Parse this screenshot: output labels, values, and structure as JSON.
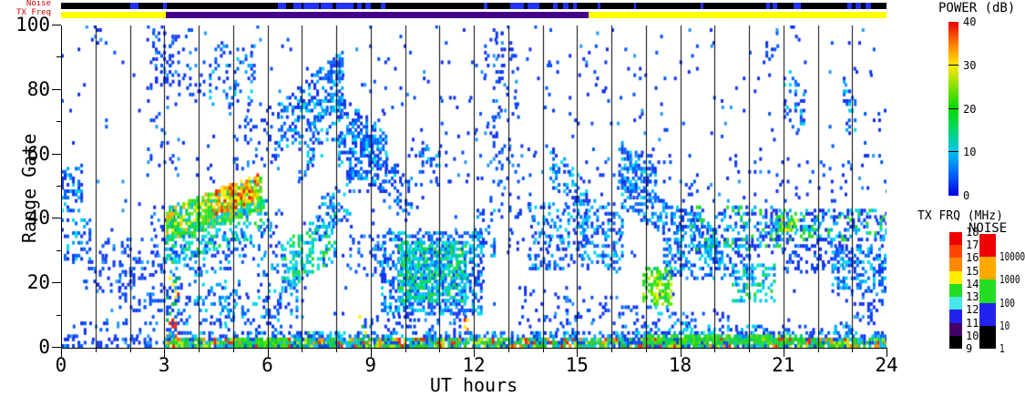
{
  "chart_data": {
    "type": "heatmap",
    "title": "",
    "xlabel": "UT hours",
    "ylabel": "Range Gate",
    "xlim": [
      0,
      24
    ],
    "ylim": [
      0,
      100
    ],
    "x_major_ticks": [
      0,
      3,
      6,
      9,
      12,
      15,
      18,
      21,
      24
    ],
    "x_minor_step": 1,
    "y_major_ticks": [
      0,
      20,
      40,
      60,
      80,
      100
    ],
    "y_minor_step": 10,
    "hour_gridlines": true,
    "seed": 7,
    "strips": {
      "noise": {
        "label": "Noise",
        "bar_color": "#000000",
        "mark_color": "#2233ff",
        "segments_hours": [
          [
            2.0,
            2.25
          ],
          [
            2.98,
            3.06
          ],
          [
            6.3,
            6.55
          ],
          [
            6.75,
            7.0
          ],
          [
            7.05,
            7.5
          ],
          [
            7.55,
            7.9
          ],
          [
            8.0,
            8.5
          ],
          [
            8.6,
            8.75
          ],
          [
            8.85,
            9.0
          ],
          [
            9.3,
            9.42
          ],
          [
            12.3,
            12.4
          ],
          [
            13.05,
            13.45
          ],
          [
            13.55,
            13.9
          ],
          [
            14.3,
            14.45
          ],
          [
            14.6,
            14.75
          ],
          [
            14.9,
            15.0
          ],
          [
            15.6,
            15.68
          ],
          [
            16.65,
            16.72
          ],
          [
            18.6,
            18.68
          ],
          [
            20.5,
            20.62
          ],
          [
            20.7,
            20.82
          ],
          [
            21.3,
            21.5
          ],
          [
            22.85,
            23.0
          ],
          [
            23.1,
            23.25
          ],
          [
            23.4,
            23.55
          ]
        ]
      },
      "txfreq": {
        "label": "TX Freq",
        "segments": [
          {
            "h": [
              0,
              3.05
            ],
            "color": "#ffff00"
          },
          {
            "h": [
              3.05,
              15.35
            ],
            "color": "#440088"
          },
          {
            "h": [
              15.35,
              24
            ],
            "color": "#ffff00"
          }
        ]
      }
    },
    "colorbars": {
      "power": {
        "title": "POWER (dB)",
        "ticks": [
          40,
          30,
          20,
          10,
          0
        ],
        "gradient_bottom_up": [
          [
            "#0000e0",
            0
          ],
          [
            "#0077ff",
            15
          ],
          [
            "#00c8e8",
            26
          ],
          [
            "#00d855",
            40
          ],
          [
            "#00d800",
            50
          ],
          [
            "#7fe000",
            62
          ],
          [
            "#ffe800",
            75
          ],
          [
            "#ff8000",
            87
          ],
          [
            "#e80000",
            100
          ]
        ],
        "dividers_pct": [
          25,
          50,
          75
        ]
      },
      "txfrq": {
        "title": "TX FRQ (MHz)",
        "ticks": [
          18,
          17,
          16,
          15,
          14,
          13,
          12,
          11,
          10,
          9
        ],
        "colors_top_down": [
          "#ee0000",
          "#ff4400",
          "#ff8800",
          "#ffee00",
          "#22dd22",
          "#44e8e8",
          "#2222ee",
          "#440066",
          "#000000"
        ]
      },
      "noise": {
        "title": "NOISE",
        "ticks": [
          "10000",
          "1000",
          "100",
          "10",
          "1"
        ],
        "colors_top_down": [
          "#ee0000",
          "#ffaa00",
          "#22dd22",
          "#2222ee",
          "#000000"
        ]
      }
    },
    "palettes": {
      "blue": [
        [
          "#1133ee",
          50
        ],
        [
          "#0055ff",
          32
        ],
        [
          "#2299ff",
          18
        ]
      ],
      "bluecyan": [
        [
          "#1133ee",
          33
        ],
        [
          "#0066ff",
          30
        ],
        [
          "#00aaff",
          17
        ],
        [
          "#00d8ee",
          20
        ]
      ],
      "cyan": [
        [
          "#00cfff",
          50
        ],
        [
          "#00e8e8",
          30
        ],
        [
          "#33bbff",
          20
        ]
      ],
      "bcg": [
        [
          "#1133ee",
          38
        ],
        [
          "#00aaff",
          26
        ],
        [
          "#00d8ee",
          16
        ],
        [
          "#22dd22",
          20
        ]
      ],
      "cyangreen": [
        [
          "#00c8ff",
          28
        ],
        [
          "#00e0d0",
          24
        ],
        [
          "#00dd66",
          20
        ],
        [
          "#22dd22",
          16
        ],
        [
          "#0077ff",
          12
        ]
      ],
      "green": [
        [
          "#22dd22",
          50
        ],
        [
          "#55e000",
          30
        ],
        [
          "#00cc66",
          20
        ]
      ],
      "greenyellow": [
        [
          "#22dd22",
          35
        ],
        [
          "#66e600",
          25
        ],
        [
          "#b8ee00",
          20
        ],
        [
          "#ffee00",
          12
        ],
        [
          "#00cc88",
          8
        ]
      ],
      "greenband": [
        [
          "#22dd22",
          30
        ],
        [
          "#66e600",
          22
        ],
        [
          "#00cc66",
          15
        ],
        [
          "#ffee00",
          15
        ],
        [
          "#ffaa00",
          9
        ],
        [
          "#00bbff",
          9
        ]
      ],
      "hotcore": [
        [
          "#ffee00",
          28
        ],
        [
          "#ffaa00",
          30
        ],
        [
          "#ff6600",
          22
        ],
        [
          "#ee2200",
          20
        ]
      ],
      "mix": [
        [
          "#0044ff",
          30
        ],
        [
          "#00bb44",
          20
        ],
        [
          "#ffee00",
          15
        ],
        [
          "#ff8800",
          15
        ],
        [
          "#ee2200",
          20
        ]
      ],
      "bottomMix": [
        [
          "#22c922",
          28
        ],
        [
          "#00cc88",
          12
        ],
        [
          "#0044ee",
          20
        ],
        [
          "#00bbff",
          15
        ],
        [
          "#aaee00",
          10
        ],
        [
          "#ff8800",
          7
        ],
        [
          "#ee2200",
          8
        ]
      ]
    },
    "features": [
      [
        0,
        24,
        0,
        100,
        0,
        100,
        0.012,
        "blue"
      ],
      [
        0,
        0.6,
        42,
        56,
        42,
        56,
        0.45,
        "bluecyan"
      ],
      [
        0,
        0.85,
        27,
        40,
        27,
        40,
        0.35,
        "bluecyan"
      ],
      [
        0.55,
        1.35,
        93,
        101,
        93,
        101,
        0.1,
        "blue"
      ],
      [
        0.7,
        2.2,
        17,
        34,
        17,
        34,
        0.15,
        "blue"
      ],
      [
        1.6,
        3.1,
        11,
        30,
        11,
        30,
        0.25,
        "blue"
      ],
      [
        0.1,
        2.9,
        0,
        9,
        0,
        9,
        0.1,
        "blue"
      ],
      [
        2.5,
        3.4,
        55,
        101,
        55,
        101,
        0.08,
        "blue"
      ],
      [
        2.65,
        3.25,
        82,
        98,
        82,
        98,
        0.22,
        "blue"
      ],
      [
        2.6,
        3.25,
        29,
        45,
        29,
        45,
        0.22,
        "blue"
      ],
      [
        3.05,
        5.8,
        33,
        43,
        43,
        53,
        0.75,
        "greenband"
      ],
      [
        4.4,
        5.75,
        41,
        48,
        47,
        54,
        0.6,
        "hotcore"
      ],
      [
        3.05,
        6.0,
        26,
        35,
        36,
        46,
        0.35,
        "cyangreen"
      ],
      [
        3.0,
        6.1,
        20,
        30,
        28,
        38,
        0.22,
        "bluecyan"
      ],
      [
        3.4,
        4.2,
        76,
        93,
        76,
        93,
        0.12,
        "blue"
      ],
      [
        4.3,
        5.6,
        74,
        94,
        74,
        94,
        0.22,
        "bluecyan"
      ],
      [
        5.0,
        6.3,
        55,
        75,
        55,
        75,
        0.12,
        "blue"
      ],
      [
        3.05,
        3.45,
        0,
        22,
        0,
        22,
        0.45,
        "mix"
      ],
      [
        3.3,
        5.2,
        7,
        21,
        7,
        21,
        0.22,
        "bluecyan"
      ],
      [
        4.6,
        6.4,
        2,
        16,
        2,
        16,
        0.2,
        "bluecyan"
      ],
      [
        5.7,
        7.1,
        9,
        26,
        9,
        26,
        0.22,
        "bluecyan"
      ],
      [
        5.9,
        6.5,
        28,
        44,
        28,
        44,
        0.15,
        "blue"
      ],
      [
        6.3,
        8.15,
        60,
        76,
        76,
        92,
        0.45,
        "bluecyan"
      ],
      [
        6.9,
        8.15,
        52,
        68,
        66,
        80,
        0.3,
        "bluecyan"
      ],
      [
        6.4,
        8.0,
        17,
        32,
        27,
        44,
        0.35,
        "cyangreen"
      ],
      [
        7.4,
        8.4,
        33,
        46,
        40,
        52,
        0.25,
        "bluecyan"
      ],
      [
        8.05,
        9.45,
        54,
        78,
        48,
        66,
        0.5,
        "bluecyan"
      ],
      [
        8.3,
        9.4,
        22,
        35,
        22,
        35,
        0.25,
        "blue"
      ],
      [
        9.35,
        10.2,
        45,
        60,
        38,
        52,
        0.3,
        "bluecyan"
      ],
      [
        10.4,
        11.0,
        54,
        64,
        50,
        60,
        0.25,
        "bluecyan"
      ],
      [
        9.3,
        12.2,
        10,
        36,
        10,
        36,
        0.5,
        "bluecyan"
      ],
      [
        9.8,
        11.75,
        14,
        33,
        14,
        33,
        0.55,
        "cyangreen"
      ],
      [
        9.0,
        12.2,
        4,
        10,
        4,
        10,
        0.18,
        "blue"
      ],
      [
        12.0,
        12.6,
        27,
        43,
        27,
        43,
        0.25,
        "bluecyan"
      ],
      [
        12.3,
        13.3,
        40,
        101,
        40,
        101,
        0.06,
        "blue"
      ],
      [
        12.55,
        12.8,
        55,
        101,
        55,
        101,
        0.18,
        "blue"
      ],
      [
        13.3,
        14.7,
        7,
        20,
        7,
        20,
        0.13,
        "blue"
      ],
      [
        13.6,
        15.3,
        24,
        45,
        24,
        45,
        0.25,
        "bluecyan"
      ],
      [
        13.0,
        16.2,
        28,
        45,
        28,
        45,
        0.08,
        "blue"
      ],
      [
        14.2,
        15.35,
        50,
        62,
        42,
        52,
        0.3,
        "bluecyan"
      ],
      [
        15.0,
        16.35,
        28,
        48,
        23,
        40,
        0.3,
        "bluecyan"
      ],
      [
        14.6,
        16.3,
        3,
        16,
        3,
        16,
        0.15,
        "blue"
      ],
      [
        9.0,
        16.2,
        50,
        101,
        50,
        101,
        0.02,
        "blue"
      ],
      [
        16.2,
        17.25,
        50,
        64,
        47,
        56,
        0.45,
        "bluecyan"
      ],
      [
        16.2,
        19.0,
        44,
        53,
        26,
        37,
        0.4,
        "bluecyan"
      ],
      [
        16.9,
        17.75,
        13,
        25,
        13,
        25,
        0.6,
        "greenyellow"
      ],
      [
        16.3,
        18.3,
        0,
        13,
        0,
        13,
        0.2,
        "bluecyan"
      ],
      [
        17.5,
        20.1,
        21,
        34,
        21,
        34,
        0.35,
        "bluecyan"
      ],
      [
        18.3,
        21.0,
        30,
        44,
        30,
        44,
        0.35,
        "bcg"
      ],
      [
        19.5,
        20.7,
        14,
        26,
        14,
        26,
        0.3,
        "cyangreen"
      ],
      [
        20.6,
        24,
        33,
        43,
        33,
        43,
        0.45,
        "bcg"
      ],
      [
        20.8,
        21.4,
        36,
        41,
        36,
        41,
        0.5,
        "greenband"
      ],
      [
        21.0,
        22.7,
        23,
        34,
        23,
        34,
        0.25,
        "blue"
      ],
      [
        22.4,
        24,
        17,
        32,
        17,
        32,
        0.4,
        "bluecyan"
      ],
      [
        22.8,
        24,
        7,
        17,
        7,
        17,
        0.2,
        "blue"
      ],
      [
        18.0,
        19.4,
        2,
        12,
        2,
        12,
        0.15,
        "blue"
      ],
      [
        16.3,
        24,
        45,
        60,
        45,
        60,
        0.05,
        "blue"
      ],
      [
        20.4,
        20.85,
        88,
        96,
        88,
        96,
        0.14,
        "blue"
      ],
      [
        21.0,
        21.6,
        70,
        88,
        66,
        78,
        0.28,
        "bluecyan"
      ],
      [
        22.65,
        23.05,
        68,
        86,
        66,
        78,
        0.22,
        "bluecyan"
      ],
      [
        16.3,
        24,
        60,
        101,
        60,
        101,
        0.013,
        "blue"
      ],
      [
        8.65,
        9.0,
        0,
        10,
        0,
        10,
        0.3,
        "mix"
      ],
      [
        11.7,
        11.95,
        0,
        9,
        0,
        9,
        0.3,
        "mix"
      ],
      [
        6.6,
        8.2,
        0,
        5,
        0,
        5,
        0.5,
        "cyangreen"
      ],
      [
        0,
        3,
        0,
        3,
        0,
        3,
        0.3,
        "blue"
      ],
      [
        3,
        24,
        0,
        3,
        0,
        3,
        0.9,
        "bottomMix"
      ],
      [
        3,
        24,
        3,
        5,
        3,
        5,
        0.4,
        "bluecyan"
      ],
      [
        17,
        21.6,
        1,
        4,
        1,
        4,
        0.75,
        "green"
      ],
      [
        5,
        6.6,
        0,
        3,
        0,
        3,
        0.6,
        "green"
      ],
      [
        18,
        23,
        4,
        7,
        4,
        7,
        0.3,
        "bluecyan"
      ]
    ]
  }
}
